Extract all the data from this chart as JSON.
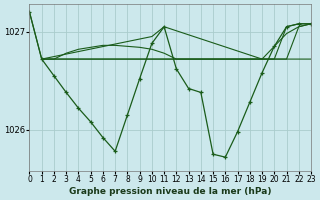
{
  "title": "Graphe pression niveau de la mer (hPa)",
  "bg_color": "#cce8ec",
  "grid_color": "#aacccc",
  "line_color": "#1a5c1a",
  "xlim": [
    0,
    23
  ],
  "ylim": [
    1025.58,
    1027.28
  ],
  "yticks": [
    1026.0,
    1027.0
  ],
  "xticks": [
    0,
    1,
    2,
    3,
    4,
    5,
    6,
    7,
    8,
    9,
    10,
    11,
    12,
    13,
    14,
    15,
    16,
    17,
    18,
    19,
    20,
    21,
    22,
    23
  ],
  "series": [
    {
      "x": [
        0,
        1,
        2,
        3,
        4,
        5,
        6,
        7,
        8,
        9,
        10,
        11,
        12,
        13,
        14,
        15,
        16,
        17,
        18,
        19,
        20,
        21,
        22,
        23
      ],
      "y": [
        1027.2,
        1026.72,
        1026.72,
        1026.72,
        1026.72,
        1026.72,
        1026.72,
        1026.72,
        1026.72,
        1026.72,
        1026.72,
        1026.72,
        1026.72,
        1026.72,
        1026.72,
        1026.72,
        1026.72,
        1026.72,
        1026.72,
        1026.72,
        1026.72,
        1026.72,
        1027.05,
        1027.08
      ],
      "markers": false
    },
    {
      "x": [
        1,
        2,
        3,
        4,
        5,
        6,
        7,
        8,
        9,
        10,
        11,
        12,
        13,
        14,
        15,
        16,
        17,
        18,
        19,
        20,
        21,
        22,
        23
      ],
      "y": [
        1026.72,
        1026.72,
        1026.72,
        1026.72,
        1026.72,
        1026.72,
        1026.72,
        1026.72,
        1026.72,
        1026.72,
        1026.72,
        1026.72,
        1026.72,
        1026.72,
        1026.72,
        1026.72,
        1026.72,
        1026.72,
        1026.72,
        1026.72,
        1027.05,
        1027.08,
        1027.08
      ],
      "markers": false
    },
    {
      "x": [
        1,
        2,
        3,
        4,
        5,
        6,
        7,
        8,
        9,
        10,
        11,
        12,
        13,
        14,
        15,
        16,
        17,
        18,
        19,
        20,
        21,
        22,
        23
      ],
      "y": [
        1026.72,
        1026.72,
        1026.78,
        1026.82,
        1026.84,
        1026.86,
        1026.86,
        1026.85,
        1026.84,
        1026.82,
        1026.78,
        1026.72,
        1026.72,
        1026.72,
        1026.72,
        1026.72,
        1026.72,
        1026.72,
        1026.72,
        1026.72,
        1026.72,
        1026.72,
        1026.72
      ],
      "markers": false
    },
    {
      "x": [
        1,
        10,
        11,
        19,
        20,
        21,
        22,
        23
      ],
      "y": [
        1026.72,
        1026.95,
        1027.05,
        1026.72,
        1026.85,
        1026.98,
        1027.05,
        1027.08
      ],
      "markers": false
    },
    {
      "x": [
        0,
        1,
        2,
        3,
        4,
        5,
        6,
        7,
        8,
        9,
        10,
        11,
        12,
        13,
        14,
        15,
        16,
        17,
        18,
        19,
        20,
        21,
        22,
        23
      ],
      "y": [
        1027.2,
        1026.72,
        1026.55,
        1026.38,
        1026.22,
        1026.08,
        1025.92,
        1025.78,
        1026.15,
        1026.52,
        1026.88,
        1027.05,
        1026.62,
        1026.42,
        1026.38,
        1025.75,
        1025.72,
        1025.98,
        1026.28,
        1026.58,
        1026.85,
        1027.05,
        1027.08,
        1027.08
      ],
      "markers": true
    }
  ]
}
